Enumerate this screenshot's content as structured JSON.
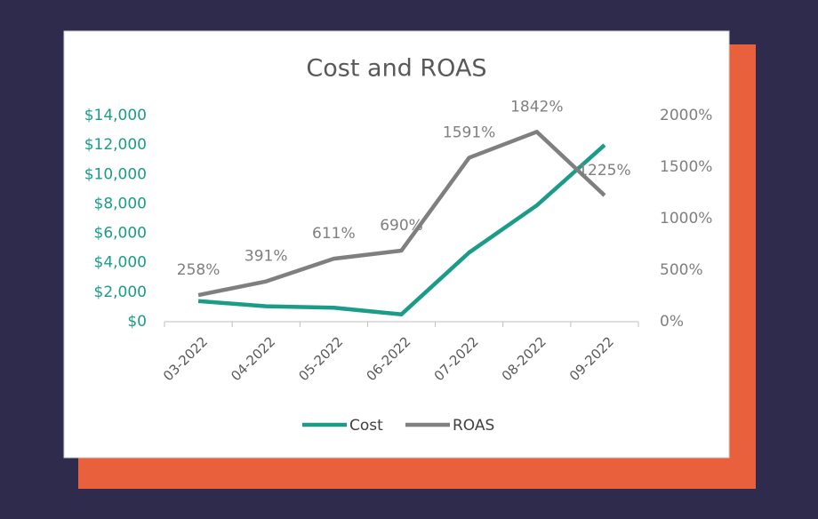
{
  "chart_data": {
    "type": "line",
    "title": "Cost and ROAS",
    "categories": [
      "03-2022",
      "04-2022",
      "05-2022",
      "06-2022",
      "07-2022",
      "08-2022",
      "09-2022"
    ],
    "series": [
      {
        "name": "Cost",
        "color": "#1a9c88",
        "values": [
          1400,
          1050,
          950,
          500,
          4700,
          7900,
          12000
        ]
      },
      {
        "name": "ROAS",
        "color": "#7f7f7f",
        "axis": "y2",
        "values": [
          258,
          391,
          611,
          690,
          1591,
          1842,
          1225
        ],
        "value_labels": [
          "258%",
          "391%",
          "611%",
          "690%",
          "1591%",
          "1842%",
          "1225%"
        ]
      }
    ],
    "ylim": [
      0,
      14000
    ],
    "yticks": [
      {
        "value": 0,
        "label": "$0"
      },
      {
        "value": 2000,
        "label": "$2,000"
      },
      {
        "value": 4000,
        "label": "$4,000"
      },
      {
        "value": 6000,
        "label": "$6,000"
      },
      {
        "value": 8000,
        "label": "$8,000"
      },
      {
        "value": 10000,
        "label": "$10,000"
      },
      {
        "value": 12000,
        "label": "$12,000"
      },
      {
        "value": 14000,
        "label": "$14,000"
      }
    ],
    "y2lim": [
      0,
      2000
    ],
    "y2ticks": [
      {
        "value": 0,
        "label": "0%"
      },
      {
        "value": 500,
        "label": "500%"
      },
      {
        "value": 1000,
        "label": "1000%"
      },
      {
        "value": 1500,
        "label": "1500%"
      },
      {
        "value": 2000,
        "label": "2000%"
      }
    ],
    "legend": "bottom"
  }
}
